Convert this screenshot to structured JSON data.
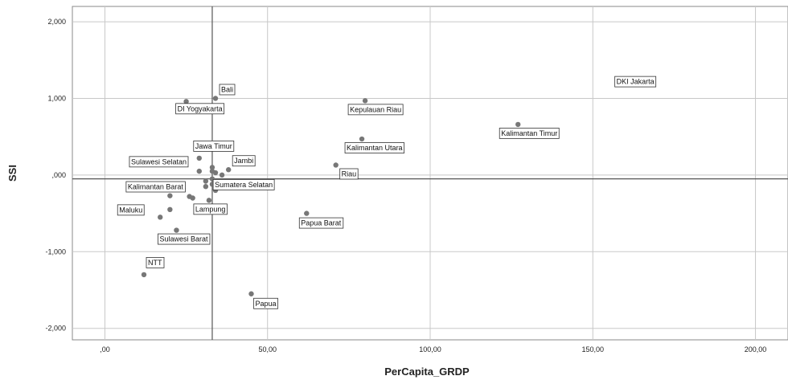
{
  "chart_data": {
    "type": "scatter",
    "xlabel": "PerCapita_GRDP",
    "ylabel": "SSI",
    "xlim": [
      -10,
      210
    ],
    "ylim": [
      -2.15,
      2.2
    ],
    "x_ticks": [
      0,
      50,
      100,
      150,
      200
    ],
    "x_tick_labels": [
      ",00",
      "50,00",
      "100,00",
      "150,00",
      "200,00"
    ],
    "y_ticks": [
      2,
      1,
      0,
      -1,
      -2
    ],
    "y_tick_labels": [
      "2,000",
      "1,000",
      ",000",
      "-1,000",
      "-2,000"
    ],
    "grid": true,
    "reference_lines": {
      "x": 33,
      "y": -0.05
    },
    "point_color": "#777777",
    "points": [
      {
        "label": "DKI Jakarta",
        "x": 158,
        "y": 1.25,
        "dx": -6,
        "dy": -4
      },
      {
        "label": "Kalimantan Timur",
        "x": 127,
        "y": 0.66,
        "dx": -24,
        "dy": 4
      },
      {
        "label": "Kepulauan Riau",
        "x": 80,
        "y": 0.97,
        "dx": -22,
        "dy": 4
      },
      {
        "label": "Kalimantan Utara",
        "x": 79,
        "y": 0.47,
        "dx": -22,
        "dy": 4
      },
      {
        "label": "Riau",
        "x": 71,
        "y": 0.13,
        "dx": 4,
        "dy": 4
      },
      {
        "label": "Papua Barat",
        "x": 62,
        "y": -0.5,
        "dx": -10,
        "dy": 5
      },
      {
        "label": "Papua",
        "x": 45,
        "y": -1.55,
        "dx": 2,
        "dy": 5
      },
      {
        "label": "Bali",
        "x": 34,
        "y": 1.0,
        "dx": 4,
        "dy": -18
      },
      {
        "label": "DI Yogyakarta",
        "x": 25,
        "y": 0.96,
        "dx": -14,
        "dy": 2
      },
      {
        "label": "Jawa Timur",
        "x": 29,
        "y": 0.22,
        "dx": -8,
        "dy": -22
      },
      {
        "label": "Jambi",
        "x": 38,
        "y": 0.07,
        "dx": 4,
        "dy": -18
      },
      {
        "label": "Sulawesi Selatan",
        "x": 33,
        "y": 0.1,
        "dx": -104,
        "dy": -14
      },
      {
        "label": "Sumatera Selatan",
        "x": 36,
        "y": 0.0,
        "dx": -12,
        "dy": 5
      },
      {
        "label": "Kalimantan Barat",
        "x": 31,
        "y": -0.08,
        "dx": -100,
        "dy": 0
      },
      {
        "label": "Lampung",
        "x": 32,
        "y": -0.33,
        "dx": -20,
        "dy": 4
      },
      {
        "label": "Maluku",
        "x": 17,
        "y": -0.55,
        "dx": -54,
        "dy": -16
      },
      {
        "label": "Sulawesi Barat",
        "x": 22,
        "y": -0.72,
        "dx": -24,
        "dy": 4
      },
      {
        "label": "NTT",
        "x": 12,
        "y": -1.3,
        "dx": 2,
        "dy": -22
      },
      {
        "label": "",
        "x": 29,
        "y": 0.05,
        "dx": 0,
        "dy": 0
      },
      {
        "label": "",
        "x": 33,
        "y": 0.05,
        "dx": 0,
        "dy": 0
      },
      {
        "label": "",
        "x": 34,
        "y": 0.03,
        "dx": 0,
        "dy": 0
      },
      {
        "label": "",
        "x": 31,
        "y": -0.15,
        "dx": 0,
        "dy": 0
      },
      {
        "label": "",
        "x": 33,
        "y": -0.12,
        "dx": 0,
        "dy": 0
      },
      {
        "label": "",
        "x": 34,
        "y": -0.2,
        "dx": 0,
        "dy": 0
      },
      {
        "label": "",
        "x": 20,
        "y": -0.27,
        "dx": 0,
        "dy": 0
      },
      {
        "label": "",
        "x": 24,
        "y": -0.18,
        "dx": 0,
        "dy": 0
      },
      {
        "label": "",
        "x": 26,
        "y": -0.28,
        "dx": 0,
        "dy": 0
      },
      {
        "label": "",
        "x": 27,
        "y": -0.3,
        "dx": 0,
        "dy": 0
      },
      {
        "label": "",
        "x": 20,
        "y": -0.45,
        "dx": 0,
        "dy": 0
      },
      {
        "label": "",
        "x": 33,
        "y": -0.05,
        "dx": 0,
        "dy": 0
      }
    ]
  }
}
